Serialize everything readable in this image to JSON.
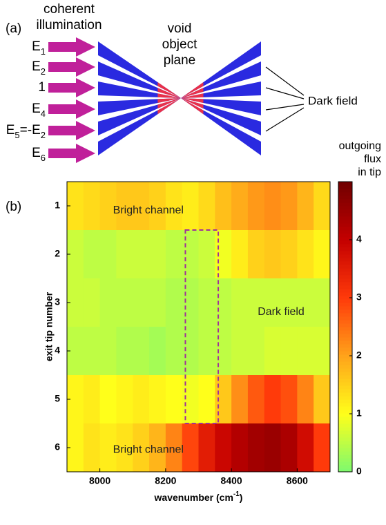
{
  "panel_a": {
    "label": "(a)",
    "header": [
      "coherent",
      "illumination"
    ],
    "center": [
      "void",
      "object",
      "plane"
    ],
    "right": "Dark field",
    "inputs": [
      [
        "E",
        "1"
      ],
      [
        "E",
        "2"
      ],
      [
        "1"
      ],
      [
        "E",
        "4"
      ],
      [
        "E",
        "5",
        "=-E",
        "2"
      ],
      [
        "E",
        "6"
      ]
    ]
  },
  "chart_data": {
    "type": "heatmap",
    "panel": "(b)",
    "xlabel": [
      "wavenumber (cm",
      "-1",
      ")"
    ],
    "ylabel": "exit tip number",
    "x": [
      7925,
      7975,
      8025,
      8075,
      8125,
      8175,
      8225,
      8275,
      8325,
      8375,
      8425,
      8475,
      8525,
      8575,
      8625,
      8675
    ],
    "y": [
      1,
      2,
      3,
      4,
      5,
      6
    ],
    "values": [
      [
        1.3,
        1.4,
        1.5,
        1.6,
        1.6,
        1.5,
        1.3,
        1.2,
        1.4,
        1.7,
        1.9,
        2.1,
        2.2,
        2.1,
        1.8,
        1.4
      ],
      [
        0.6,
        0.5,
        0.5,
        0.6,
        0.6,
        0.6,
        0.5,
        0.5,
        0.6,
        0.9,
        1.2,
        1.5,
        1.6,
        1.5,
        1.3,
        1.1
      ],
      [
        0.6,
        0.6,
        0.5,
        0.5,
        0.5,
        0.5,
        0.4,
        0.4,
        0.5,
        0.5,
        0.6,
        0.6,
        0.6,
        0.6,
        0.6,
        0.6
      ],
      [
        0.5,
        0.5,
        0.5,
        0.4,
        0.4,
        0.3,
        0.4,
        0.4,
        0.5,
        0.5,
        0.6,
        0.6,
        0.7,
        0.7,
        0.7,
        0.7
      ],
      [
        1.1,
        1.2,
        1.0,
        1.1,
        1.2,
        1.1,
        1.0,
        0.9,
        1.0,
        1.6,
        2.2,
        2.7,
        3.0,
        2.8,
        2.3,
        1.6
      ],
      [
        1.1,
        1.3,
        1.2,
        1.3,
        1.5,
        1.8,
        2.3,
        2.9,
        3.5,
        3.9,
        4.2,
        4.4,
        4.5,
        4.3,
        3.8,
        3.0
      ]
    ],
    "xlim": [
      7900,
      8700
    ],
    "xticks": [
      8000,
      8200,
      8400,
      8600
    ],
    "ylim": [
      0.5,
      6.5
    ],
    "y_inverted": true,
    "yticks": [
      1,
      2,
      3,
      4,
      5,
      6
    ],
    "clim": [
      0,
      5
    ],
    "colorbar_ticks": [
      0,
      1,
      2,
      3,
      4
    ],
    "colorbar_label": [
      "outgoing",
      "flux",
      "in tip"
    ],
    "colormap": [
      "#7dfa6e",
      "#ffff1a",
      "#ffa31a",
      "#ff3a0a",
      "#c40000",
      "#700000"
    ],
    "annotations": [
      {
        "text": "Bright channel",
        "x": 8040,
        "y": 1.1
      },
      {
        "text": "Dark field",
        "x": 8480,
        "y": 3.2
      },
      {
        "text": "Bright channel",
        "x": 8040,
        "y": 6.05
      }
    ],
    "highlight": {
      "x": [
        8260,
        8360
      ],
      "y": [
        1.5,
        5.5
      ],
      "color": "#a0309a"
    }
  }
}
